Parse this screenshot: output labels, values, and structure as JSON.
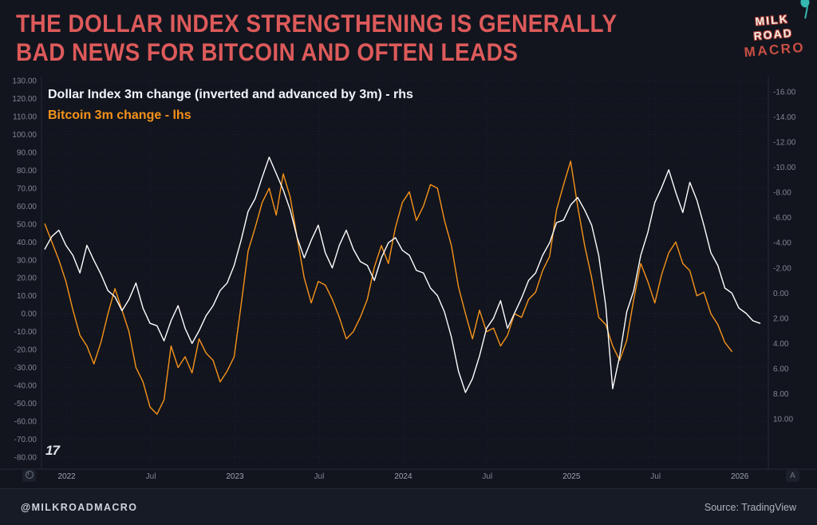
{
  "header": {
    "title_line1": "THE DOLLAR INDEX STRENGTHENING IS GENERALLY",
    "title_line2": "BAD NEWS FOR BITCOIN AND OFTEN LEADS",
    "title_color": "#dd5a5a"
  },
  "logo": {
    "word1": "MILK",
    "word2": "ROAD",
    "word3": "MACRO"
  },
  "legend": [
    {
      "label": "Dollar Index 3m change (inverted and advanced by 3m) - rhs",
      "color": "#f2f5fa"
    },
    {
      "label": "Bitcoin 3m change - lhs",
      "color": "#f7931a"
    }
  ],
  "watermark": "17",
  "axis_badges": {
    "right_label": "A"
  },
  "footer": {
    "left": "@MILKROADMACRO",
    "right": "Source: TradingView"
  },
  "colors": {
    "background": "#12151e",
    "grid": "#1c2230",
    "white_line": "#ffffff",
    "orange_line": "#f7931a"
  },
  "chart_data": {
    "type": "line",
    "title": "The Dollar Index strengthening is generally bad news for Bitcoin and often leads",
    "legend_position": "top-left",
    "grid": {
      "horizontal": true,
      "vertical": true,
      "style": "dotted"
    },
    "x_axis": {
      "unit": "decimal_year",
      "range": [
        2021.85,
        2026.17
      ],
      "ticks": [
        {
          "t": 2022.0,
          "label": "2022",
          "major": true
        },
        {
          "t": 2022.5,
          "label": "Jul",
          "major": false
        },
        {
          "t": 2023.0,
          "label": "2023",
          "major": true
        },
        {
          "t": 2023.5,
          "label": "Jul",
          "major": false
        },
        {
          "t": 2024.0,
          "label": "2024",
          "major": true
        },
        {
          "t": 2024.5,
          "label": "Jul",
          "major": false
        },
        {
          "t": 2025.0,
          "label": "2025",
          "major": true
        },
        {
          "t": 2025.5,
          "label": "Jul",
          "major": false
        },
        {
          "t": 2026.0,
          "label": "2026",
          "major": true
        }
      ]
    },
    "left_axis": {
      "title": "Bitcoin 3m change (%), lhs",
      "min": -80,
      "max": 130,
      "tick_step": 10,
      "tick_format": "two_decimals"
    },
    "right_axis": {
      "title": "Dollar Index 3m change, inverted and advanced 3m, rhs",
      "inverted": true,
      "tick_top": -16,
      "tick_bottom": 10,
      "tick_step": 2,
      "tick_format": "two_decimals"
    },
    "series": [
      {
        "name": "Bitcoin 3m change - lhs",
        "axis": "left",
        "color": "#f7931a",
        "x_start": 2021.87,
        "x_step": 0.041667,
        "values": [
          50,
          40,
          30,
          18,
          2,
          -12,
          -18,
          -28,
          -16,
          0,
          14,
          2,
          -10,
          -30,
          -38,
          -52,
          -56,
          -48,
          -18,
          -30,
          -24,
          -33,
          -14,
          -22,
          -26,
          -38,
          -32,
          -24,
          5,
          35,
          48,
          62,
          70,
          55,
          78,
          65,
          42,
          20,
          6,
          18,
          16,
          8,
          -2,
          -14,
          -10,
          -2,
          8,
          26,
          38,
          28,
          48,
          62,
          68,
          52,
          60,
          72,
          70,
          52,
          38,
          15,
          0,
          -14,
          2,
          -10,
          -8,
          -18,
          -12,
          0,
          -2,
          8,
          12,
          24,
          32,
          58,
          72,
          85,
          60,
          38,
          20,
          -2,
          -6,
          -18,
          -26,
          -15,
          8,
          28,
          18,
          6,
          22,
          34,
          40,
          28,
          24,
          10,
          12,
          0,
          -6,
          -16,
          -21
        ]
      },
      {
        "name": "Dollar Index 3m change (inverted and advanced by 3m) - rhs",
        "axis": "right",
        "color": "#ffffff",
        "x_start": 2021.87,
        "x_step": 0.041667,
        "values": [
          -3.5,
          -4.5,
          -5.0,
          -3.8,
          -3.0,
          -1.6,
          -3.8,
          -2.6,
          -1.5,
          -0.2,
          0.3,
          1.4,
          0.5,
          -0.8,
          1.2,
          2.4,
          2.6,
          3.8,
          2.2,
          1.0,
          2.8,
          4.0,
          3.0,
          1.8,
          1.0,
          -0.2,
          -0.8,
          -2.2,
          -4.2,
          -6.5,
          -7.5,
          -9.2,
          -10.8,
          -9.5,
          -8.2,
          -6.6,
          -4.4,
          -2.8,
          -4.2,
          -5.4,
          -3.2,
          -2.0,
          -3.8,
          -5.0,
          -3.5,
          -2.5,
          -2.2,
          -1.0,
          -2.8,
          -4.0,
          -4.4,
          -3.4,
          -3.0,
          -1.8,
          -1.6,
          -0.4,
          0.2,
          1.5,
          3.5,
          6.2,
          7.9,
          6.8,
          5.0,
          2.8,
          2.0,
          0.6,
          2.8,
          1.6,
          0.4,
          -1.0,
          -1.6,
          -3.0,
          -4.0,
          -5.6,
          -5.8,
          -7.0,
          -7.6,
          -6.6,
          -5.4,
          -3.0,
          1.0,
          7.6,
          5.0,
          1.5,
          -0.2,
          -3.0,
          -4.8,
          -7.2,
          -8.4,
          -9.8,
          -8.0,
          -6.4,
          -8.8,
          -7.4,
          -5.4,
          -3.2,
          -2.2,
          -0.4,
          0.0,
          1.2,
          1.6,
          2.2,
          2.4
        ]
      }
    ]
  }
}
